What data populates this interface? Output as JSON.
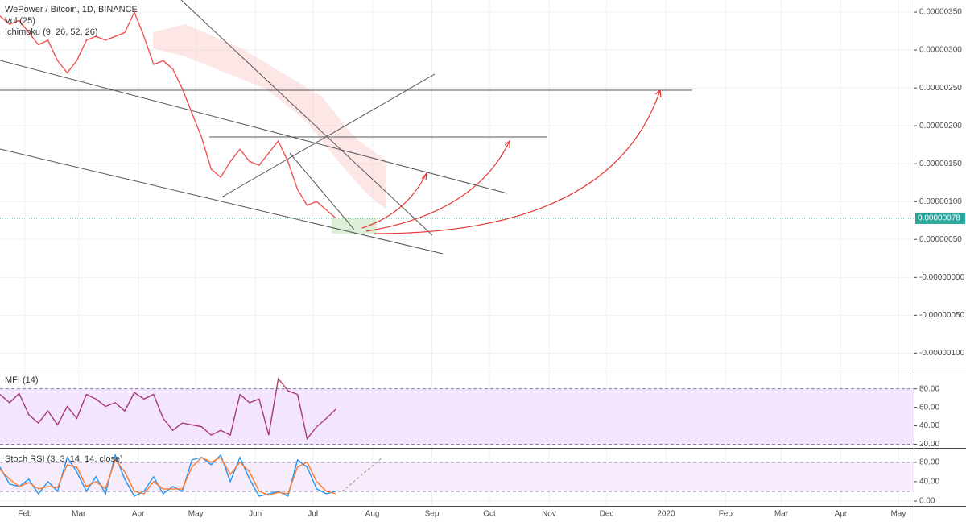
{
  "chart_data": [
    {
      "type": "line",
      "title": "WePower / Bitcoin, 1D, BINANCE",
      "subtitle": "Vol (25)",
      "annotation": "Ichimoku (9, 26, 52, 26)",
      "x": [
        18,
        23,
        28,
        33,
        38,
        43,
        48,
        53,
        58,
        63,
        68,
        73,
        78,
        83,
        88,
        93,
        98,
        103,
        108,
        113,
        118,
        123,
        128,
        133,
        138,
        143,
        148,
        153,
        158,
        163,
        168,
        173,
        178,
        183,
        188,
        193
      ],
      "series": [
        {
          "color": "#ef5350",
          "values": [
            3.45e-06,
            3.34e-06,
            3.39e-06,
            3.23e-06,
            3.07e-06,
            3.13e-06,
            2.86e-06,
            2.7e-06,
            2.86e-06,
            3.13e-06,
            3.18e-06,
            3.13e-06,
            3.18e-06,
            3.23e-06,
            3.5e-06,
            3.18e-06,
            2.81e-06,
            2.86e-06,
            2.75e-06,
            2.49e-06,
            2.17e-06,
            1.85e-06,
            1.43e-06,
            1.32e-06,
            1.53e-06,
            1.69e-06,
            1.53e-06,
            1.48e-06,
            1.64e-06,
            1.8e-06,
            1.53e-06,
            1.16e-06,
            9.5e-07,
            1e-06,
            8.9e-07,
            7.8e-07
          ]
        }
      ],
      "last_price": {
        "value": 7.8e-07,
        "label": "0.00000078"
      },
      "xlim": [
        18,
        494
      ],
      "ylim": [
        -1.23e-06,
        3.66e-06
      ],
      "yticks": [
        {
          "value": 3.5e-06,
          "label": "0.00000350"
        },
        {
          "value": 3e-06,
          "label": "0.00000300"
        },
        {
          "value": 2.5e-06,
          "label": "0.00000250"
        },
        {
          "value": 2e-06,
          "label": "0.00000200"
        },
        {
          "value": 1.5e-06,
          "label": "0.00000150"
        },
        {
          "value": 1e-06,
          "label": "0.00000100"
        },
        {
          "value": 5e-07,
          "label": "0.00000050"
        },
        {
          "value": 0,
          "label": "-0.00000000"
        },
        {
          "value": -5e-07,
          "label": "-0.00000050"
        },
        {
          "value": -1e-06,
          "label": "-0.00000100"
        }
      ],
      "grid": true
    },
    {
      "type": "line",
      "title": "MFI (14)",
      "x": [
        18,
        23,
        28,
        33,
        38,
        43,
        48,
        53,
        58,
        63,
        68,
        73,
        78,
        83,
        88,
        93,
        98,
        103,
        108,
        113,
        118,
        123,
        128,
        133,
        138,
        143,
        148,
        153,
        158,
        163,
        168,
        173,
        178,
        183,
        188,
        193
      ],
      "series": [
        {
          "color": "#a83a6c",
          "values": [
            74,
            65,
            75,
            52,
            43,
            56,
            41,
            61,
            48,
            74,
            69,
            61,
            65,
            56,
            76,
            69,
            74,
            48,
            35,
            43,
            41,
            39,
            30,
            35,
            30,
            74,
            65,
            69,
            30,
            91,
            78,
            74,
            26,
            39,
            48,
            58
          ]
        }
      ],
      "band": [
        20,
        80
      ],
      "band_color": "#f3e5fb",
      "xlim": [
        18,
        494
      ],
      "ylim": [
        17,
        98
      ],
      "yticks": [
        {
          "value": 80,
          "label": "80.00"
        },
        {
          "value": 60,
          "label": "60.00"
        },
        {
          "value": 40,
          "label": "40.00"
        },
        {
          "value": 20,
          "label": "20.00"
        }
      ],
      "grid": true
    },
    {
      "type": "line",
      "title": "Stoch RSI (3, 3, 14, 14, close)",
      "x": [
        18,
        23,
        28,
        33,
        38,
        43,
        48,
        53,
        58,
        63,
        68,
        73,
        78,
        83,
        88,
        93,
        98,
        103,
        108,
        113,
        118,
        123,
        128,
        133,
        138,
        143,
        148,
        153,
        158,
        163,
        168,
        173,
        178,
        183,
        188,
        193
      ],
      "series": [
        {
          "color": "#2196f3",
          "values": [
            70,
            35,
            30,
            45,
            15,
            40,
            20,
            90,
            60,
            20,
            50,
            15,
            95,
            45,
            10,
            20,
            50,
            15,
            30,
            20,
            85,
            90,
            75,
            95,
            40,
            90,
            45,
            10,
            15,
            20,
            10,
            85,
            70,
            25,
            15,
            20
          ]
        },
        {
          "color": "#ff7b2b",
          "values": [
            65,
            45,
            30,
            38,
            25,
            30,
            28,
            75,
            70,
            30,
            40,
            25,
            85,
            60,
            20,
            15,
            40,
            25,
            25,
            25,
            70,
            90,
            80,
            90,
            55,
            80,
            60,
            20,
            12,
            18,
            15,
            70,
            80,
            40,
            20,
            15
          ]
        }
      ],
      "band": [
        20,
        80
      ],
      "band_color": "#f6ecfc",
      "xlim": [
        18,
        494
      ],
      "ylim": [
        -10,
        108
      ],
      "yticks": [
        {
          "value": 80,
          "label": "80.00"
        },
        {
          "value": 40,
          "label": "40.00"
        },
        {
          "value": 0,
          "label": "0.00"
        }
      ],
      "xticks": [
        {
          "value": 31,
          "label": "Feb"
        },
        {
          "value": 59,
          "label": "Mar"
        },
        {
          "value": 90,
          "label": "Apr"
        },
        {
          "value": 120,
          "label": "May"
        },
        {
          "value": 151,
          "label": "Jun"
        },
        {
          "value": 181,
          "label": "Jul"
        },
        {
          "value": 212,
          "label": "Aug"
        },
        {
          "value": 243,
          "label": "Sep"
        },
        {
          "value": 273,
          "label": "Oct"
        },
        {
          "value": 304,
          "label": "Nov"
        },
        {
          "value": 334,
          "label": "Dec"
        },
        {
          "value": 365,
          "label": "2020"
        },
        {
          "value": 396,
          "label": "Feb"
        },
        {
          "value": 425,
          "label": "Mar"
        },
        {
          "value": 456,
          "label": "Apr"
        },
        {
          "value": 486,
          "label": "May"
        }
      ],
      "grid": true
    }
  ]
}
